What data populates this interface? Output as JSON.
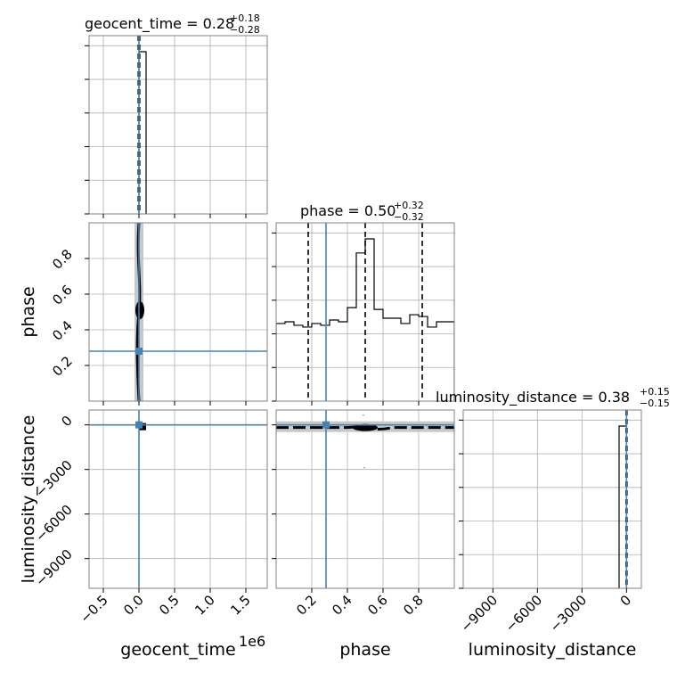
{
  "chart_data": {
    "type": "corner",
    "parameters": [
      "geocent_time",
      "phase",
      "luminosity_distance"
    ],
    "axis_labels": {
      "geocent_time": "geocent_time",
      "phase": "phase",
      "luminosity_distance": "luminosity_distance"
    },
    "axis_multiplier": {
      "geocent_time": "1e6"
    },
    "truth": {
      "geocent_time": 0,
      "phase": 0.28,
      "luminosity_distance": 0
    },
    "colors": {
      "truth": "#4682b4",
      "hist": "#000000",
      "band": "#c8c8c8"
    },
    "titles": [
      {
        "param": "geocent_time",
        "prefix": "geocent_time = 0.28",
        "upper": "+0.18",
        "lower": "−0.28"
      },
      {
        "param": "phase",
        "prefix": "phase = 0.50",
        "upper": "+0.32",
        "lower": "−0.32"
      },
      {
        "param": "luminosity_distance",
        "prefix": "luminosity_distance = 0.38",
        "upper": "+0.15",
        "lower": "−0.15"
      }
    ],
    "ranges": {
      "geocent_time": [
        -0.7,
        1.8
      ],
      "phase": [
        0.0,
        1.0
      ],
      "luminosity_distance": [
        -11000,
        1000
      ]
    },
    "ticks": {
      "geocent_time": {
        "values": [
          -0.5,
          0.0,
          0.5,
          1.0,
          1.5
        ],
        "labels": [
          "−0.5",
          "0.0",
          "0.5",
          "1.0",
          "1.5"
        ]
      },
      "phase": {
        "values": [
          0.2,
          0.4,
          0.6,
          0.8
        ],
        "labels": [
          "0.2",
          "0.4",
          "0.6",
          "0.8"
        ]
      },
      "luminosity_distance": {
        "values": [
          -9000,
          -6000,
          -3000,
          0
        ],
        "labels": [
          "−9000",
          "−6000",
          "−3000",
          "0"
        ]
      }
    },
    "histograms": {
      "geocent_time": {
        "edges": [
          0.0,
          0.1
        ],
        "counts": [
          1.0
        ],
        "quantiles": [
          -0.01,
          0.0,
          0.01
        ]
      },
      "phase": {
        "edges": [
          0.0,
          0.05,
          0.1,
          0.15,
          0.2,
          0.25,
          0.3,
          0.35,
          0.4,
          0.45,
          0.5,
          0.55,
          0.6,
          0.65,
          0.7,
          0.75,
          0.8,
          0.85,
          0.9,
          0.95,
          1.0
        ],
        "counts": [
          0.44,
          0.45,
          0.43,
          0.42,
          0.44,
          0.43,
          0.46,
          0.45,
          0.53,
          0.84,
          0.92,
          0.52,
          0.47,
          0.47,
          0.44,
          0.49,
          0.48,
          0.42,
          0.45,
          0.45
        ],
        "quantiles": [
          0.18,
          0.5,
          0.82
        ]
      },
      "luminosity_distance": {
        "edges": [
          -500,
          0
        ],
        "counts": [
          1.0
        ],
        "quantiles": [
          -30,
          0,
          30
        ]
      }
    }
  }
}
